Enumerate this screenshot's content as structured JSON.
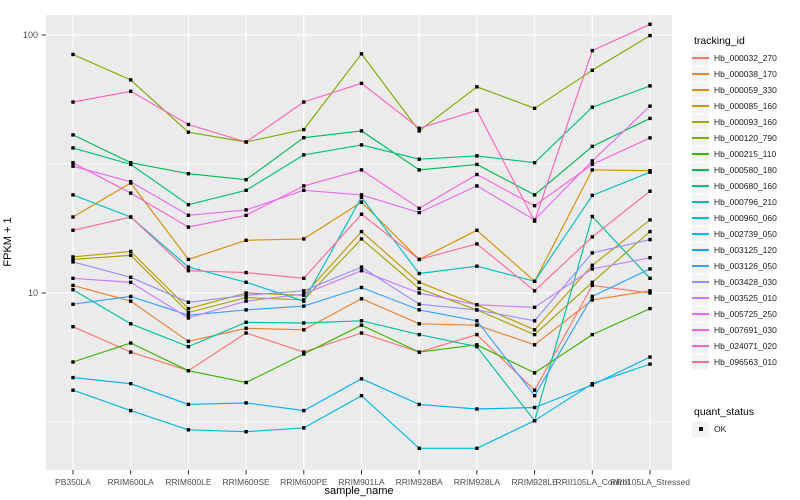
{
  "titles": {
    "y_axis": "FPKM + 1",
    "x_axis": "sample_name"
  },
  "legend": {
    "tracking_title": "tracking_id",
    "quant_title": "quant_status",
    "quant_items": [
      {
        "label": "OK",
        "marker_color": "#000000"
      }
    ]
  },
  "chart_data": {
    "type": "line",
    "y_scale": "log10",
    "title": "",
    "xlabel": "sample_name",
    "ylabel": "FPKM + 1",
    "ylim": [
      2.0,
      125
    ],
    "grid": true,
    "legend_position": "right",
    "panel_bg": "#EBEBEB",
    "grid_color": "#FFFFFF",
    "tick_color": "#333333",
    "tick_text_color": "#4D4D4D",
    "point_color": "#000000",
    "point_shape": "square",
    "y_ticks": [
      {
        "label": "100",
        "value": 100
      },
      {
        "label": "10",
        "value": 10
      }
    ],
    "y_minor_breaks": [
      31.6,
      3.16
    ],
    "categories": [
      "PB350LA",
      "RRIM600LA",
      "RRIM600LE",
      "RRIM600SE",
      "RRIM600PE",
      "RRIM901LA",
      "RRIM928BA",
      "RRIM928LA",
      "RRIM928LE",
      "RRII105LA_Control",
      "RRII105LA_Stressed"
    ],
    "series": [
      {
        "name": "Hb_000032_270",
        "color": "#F8766D",
        "values": [
          7.4,
          5.9,
          5.0,
          7.0,
          5.9,
          7.0,
          5.9,
          6.9,
          4.2,
          10.7,
          10.0
        ]
      },
      {
        "name": "Hb_000038_170",
        "color": "#EA8331",
        "values": [
          10.7,
          9.3,
          6.5,
          7.3,
          7.2,
          9.5,
          7.6,
          7.5,
          6.3,
          9.4,
          10.2
        ]
      },
      {
        "name": "Hb_000059_330",
        "color": "#D89000",
        "values": [
          19.7,
          26.7,
          13.5,
          16.0,
          16.2,
          22.5,
          13.5,
          17.5,
          11.1,
          30.0,
          29.8
        ]
      },
      {
        "name": "Hb_000085_160",
        "color": "#C09B00",
        "values": [
          13.8,
          14.5,
          8.7,
          10.0,
          9.8,
          17.3,
          11.0,
          9.0,
          7.2,
          12.8,
          19.2
        ]
      },
      {
        "name": "Hb_000093_160",
        "color": "#A3A500",
        "values": [
          13.5,
          14.0,
          8.4,
          9.6,
          9.4,
          16.2,
          10.4,
          8.6,
          6.9,
          11.0,
          17.3
        ]
      },
      {
        "name": "Hb_000120_790",
        "color": "#7CAE00",
        "values": [
          84,
          67,
          42,
          38.5,
          43,
          84.5,
          42.5,
          63,
          52,
          73,
          99.5
        ]
      },
      {
        "name": "Hb_000215_110",
        "color": "#39B600",
        "values": [
          5.4,
          6.4,
          5.0,
          4.5,
          5.8,
          7.5,
          5.9,
          6.3,
          4.9,
          6.9,
          8.7
        ]
      },
      {
        "name": "Hb_000580_180",
        "color": "#00BB4E",
        "values": [
          41,
          32,
          29,
          27.5,
          40,
          42.5,
          30,
          31.5,
          24,
          37,
          47.5
        ]
      },
      {
        "name": "Hb_000680_160",
        "color": "#00C087",
        "values": [
          36.5,
          31.5,
          22,
          25,
          34.3,
          37.5,
          33,
          34,
          32,
          52.5,
          63.5
        ]
      },
      {
        "name": "Hb_000796_210",
        "color": "#00C1A3",
        "values": [
          10.3,
          7.6,
          6.2,
          7.7,
          7.65,
          7.8,
          6.9,
          6.2,
          3.2,
          19.8,
          11.4
        ]
      },
      {
        "name": "Hb_000960_060",
        "color": "#00BFC4",
        "values": [
          24,
          19.7,
          12.6,
          11.0,
          9.3,
          23.5,
          11.9,
          12.7,
          11.1,
          23.9,
          29.4
        ]
      },
      {
        "name": "Hb_002739_050",
        "color": "#00BAE0",
        "values": [
          4.2,
          3.5,
          2.95,
          2.9,
          3.0,
          4.0,
          2.5,
          2.5,
          3.2,
          4.45,
          5.3
        ]
      },
      {
        "name": "Hb_003125_120",
        "color": "#00B0F6",
        "values": [
          4.7,
          4.45,
          3.7,
          3.75,
          3.5,
          4.65,
          3.7,
          3.55,
          3.6,
          4.4,
          5.65
        ]
      },
      {
        "name": "Hb_003126_050",
        "color": "#35A2FF",
        "values": [
          9.05,
          9.7,
          8.2,
          8.6,
          8.9,
          10.5,
          8.6,
          7.8,
          4.0,
          9.7,
          12.4
        ]
      },
      {
        "name": "Hb_003428_030",
        "color": "#9590FF",
        "values": [
          13.2,
          11.5,
          9.2,
          9.8,
          10.2,
          12.6,
          9.05,
          8.6,
          7.8,
          14.3,
          16.1
        ]
      },
      {
        "name": "Hb_003525_010",
        "color": "#C77CFF",
        "values": [
          11.4,
          11.0,
          8.0,
          9.3,
          9.9,
          12.2,
          10.0,
          9.0,
          8.8,
          12.4,
          13.7
        ]
      },
      {
        "name": "Hb_005725_250",
        "color": "#E76BF3",
        "values": [
          31,
          27,
          20,
          21,
          25,
          24,
          20.5,
          26,
          19.2,
          32.5,
          53
        ]
      },
      {
        "name": "Hb_007691_030",
        "color": "#FA62DB",
        "values": [
          32,
          24.4,
          18,
          20,
          26,
          30,
          21.3,
          28.8,
          21.8,
          31.5,
          39.9
        ]
      },
      {
        "name": "Hb_024071_020",
        "color": "#FF62BC",
        "values": [
          55,
          60.5,
          45,
          38.5,
          55,
          65,
          43.5,
          51,
          19,
          87,
          110
        ]
      },
      {
        "name": "Hb_096563_010",
        "color": "#FF6A98",
        "values": [
          17.5,
          19.7,
          12.2,
          12.0,
          11.4,
          20.2,
          13.5,
          15.5,
          10.2,
          16.5,
          24.8
        ]
      }
    ]
  }
}
